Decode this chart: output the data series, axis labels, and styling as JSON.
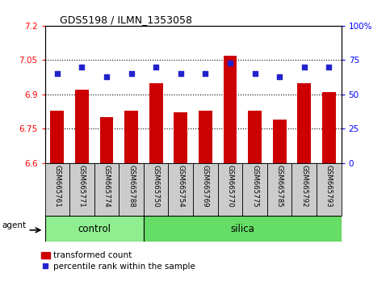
{
  "title": "GDS5198 / ILMN_1353058",
  "samples": [
    "GSM665761",
    "GSM665771",
    "GSM665774",
    "GSM665788",
    "GSM665750",
    "GSM665754",
    "GSM665769",
    "GSM665770",
    "GSM665775",
    "GSM665785",
    "GSM665792",
    "GSM665793"
  ],
  "transformed_count": [
    6.83,
    6.92,
    6.8,
    6.83,
    6.95,
    6.82,
    6.83,
    7.07,
    6.83,
    6.79,
    6.95,
    6.91
  ],
  "percentile_rank": [
    65,
    70,
    63,
    65,
    70,
    65,
    65,
    73,
    65,
    63,
    70,
    70
  ],
  "control_count": 4,
  "silica_count": 8,
  "ylim_left": [
    6.6,
    7.2
  ],
  "ylim_right": [
    0,
    100
  ],
  "yticks_left": [
    6.6,
    6.75,
    6.9,
    7.05,
    7.2
  ],
  "yticks_right": [
    0,
    25,
    50,
    75,
    100
  ],
  "ytick_labels_left": [
    "6.6",
    "6.75",
    "6.9",
    "7.05",
    "7.2"
  ],
  "ytick_labels_right": [
    "0",
    "25",
    "50",
    "75",
    "100%"
  ],
  "bar_color": "#cc0000",
  "dot_color": "#2222cc",
  "control_color": "#90ee90",
  "silica_color": "#66dd66",
  "agent_label": "agent",
  "control_label": "control",
  "silica_label": "silica",
  "legend_bar_label": "transformed count",
  "legend_dot_label": "percentile rank within the sample",
  "grid_lines": [
    6.75,
    6.9,
    7.05
  ],
  "plot_bg_color": "#ffffff",
  "tick_area_color": "#cccccc"
}
